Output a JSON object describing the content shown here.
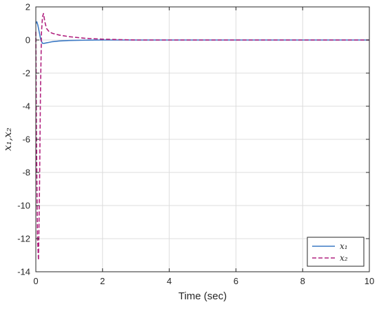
{
  "chart_data": {
    "type": "line",
    "title": "",
    "xlabel": "Time (sec)",
    "ylabel": "x₁,x₂",
    "xlim": [
      0,
      10
    ],
    "ylim": [
      -14,
      2
    ],
    "xticks": [
      "0",
      "2",
      "4",
      "6",
      "8",
      "10"
    ],
    "yticks": [
      "2",
      "0",
      "-2",
      "-4",
      "-6",
      "-8",
      "-10",
      "-12",
      "-14"
    ],
    "grid": true,
    "legend_position": "bottom-right",
    "series": [
      {
        "name": "x₁",
        "style": "solid",
        "color": "#3a78c4",
        "x": [
          0,
          0.03,
          0.06,
          0.1,
          0.15,
          0.2,
          0.25,
          0.3,
          0.4,
          0.5,
          0.7,
          1.0,
          1.5,
          2.0,
          3.0,
          5.0,
          7.5,
          10.0
        ],
        "y": [
          1.0,
          1.1,
          0.9,
          0.5,
          0.0,
          -0.2,
          -0.2,
          -0.18,
          -0.14,
          -0.1,
          -0.06,
          -0.03,
          -0.01,
          0.0,
          0.0,
          0.0,
          0.0,
          0.0
        ]
      },
      {
        "name": "x₂",
        "style": "dashed",
        "color": "#b0207e",
        "x": [
          0,
          0.02,
          0.05,
          0.08,
          0.11,
          0.14,
          0.17,
          0.2,
          0.23,
          0.27,
          0.32,
          0.4,
          0.5,
          0.7,
          1.0,
          1.5,
          2.0,
          3.0,
          5.0,
          7.5,
          10.0
        ],
        "y": [
          0.5,
          -6,
          -12,
          -13.3,
          -9,
          -3,
          0.5,
          1.4,
          1.6,
          1.1,
          0.7,
          0.5,
          0.4,
          0.3,
          0.2,
          0.1,
          0.05,
          0.0,
          0.0,
          0.0,
          0.0
        ]
      }
    ]
  },
  "colors": {
    "axes": "#262626",
    "grid": "#dcdcdc",
    "legend_border": "#262626",
    "background": "#ffffff"
  }
}
